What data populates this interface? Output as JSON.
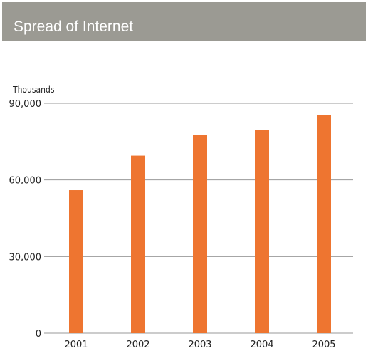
{
  "header": {
    "title": "Spread of Internet"
  },
  "chart_data": {
    "type": "bar",
    "title": "Spread of Internet",
    "ylabel": "Thousands",
    "xlabel": "",
    "categories": [
      "2001",
      "2002",
      "2003",
      "2004",
      "2005"
    ],
    "values": [
      56000,
      69500,
      77500,
      79500,
      85500
    ],
    "ylim": [
      0,
      90000
    ],
    "yticks": [
      0,
      30000,
      60000,
      90000
    ],
    "ytick_labels": [
      "0",
      "30,000",
      "60,000",
      "90,000"
    ],
    "grid": true,
    "colors": {
      "bar": "#ee7530",
      "grid": "#9a9a9a",
      "header_bg": "#9b9a93"
    }
  }
}
